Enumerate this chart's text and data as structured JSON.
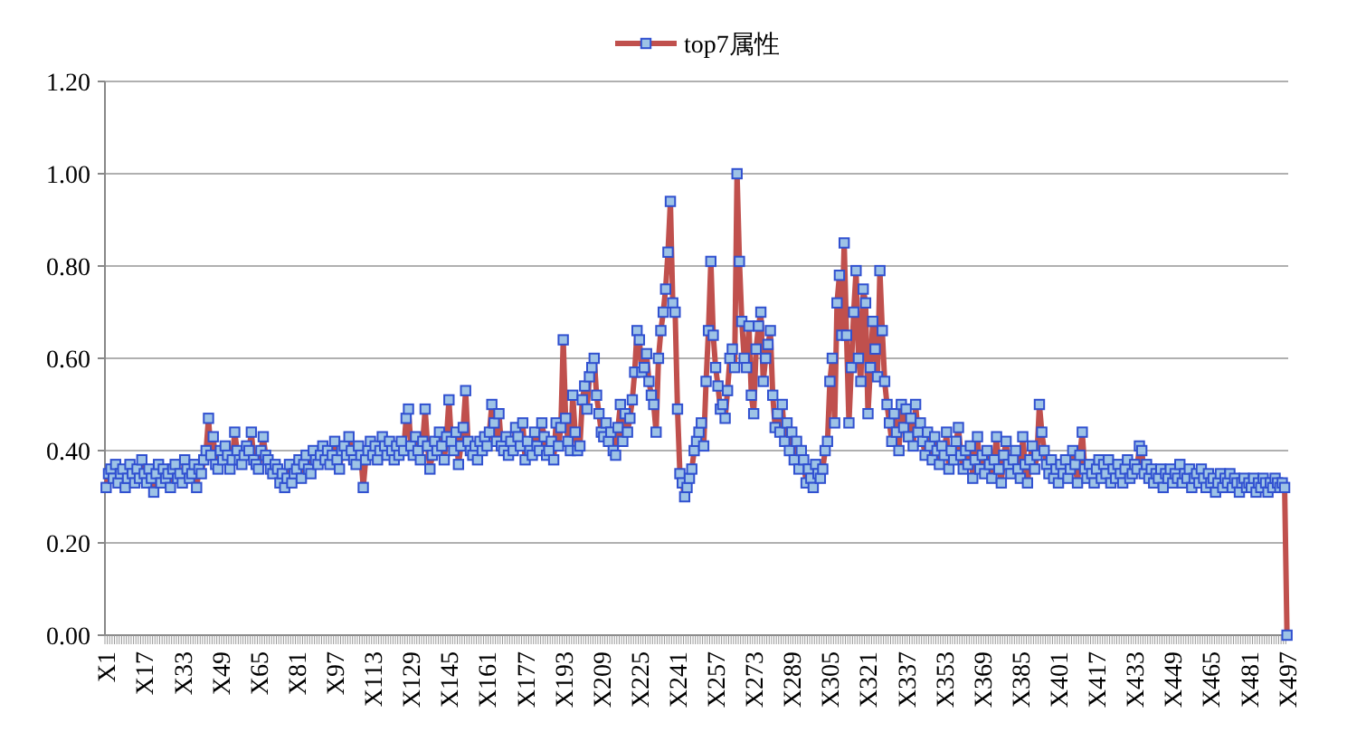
{
  "chart_data": {
    "type": "line",
    "legend": "top",
    "grid": "y",
    "marker": "square",
    "ylim": [
      0,
      1.2
    ],
    "yticks": [
      {
        "value": 0,
        "label": "0.00"
      },
      {
        "value": 0.2,
        "label": "0.20"
      },
      {
        "value": 0.4,
        "label": "0.40"
      },
      {
        "value": 0.6,
        "label": "0.60"
      },
      {
        "value": 0.8,
        "label": "0.80"
      },
      {
        "value": 1.0,
        "label": "1.00"
      },
      {
        "value": 1.2,
        "label": "1.20"
      }
    ],
    "categories": [
      "X1",
      null,
      null,
      null,
      null,
      null,
      null,
      null,
      null,
      null,
      null,
      null,
      null,
      null,
      null,
      null,
      "X17",
      null,
      null,
      null,
      null,
      null,
      null,
      null,
      null,
      null,
      null,
      null,
      null,
      null,
      null,
      null,
      "X33",
      null,
      null,
      null,
      null,
      null,
      null,
      null,
      null,
      null,
      null,
      null,
      null,
      null,
      null,
      null,
      "X49",
      null,
      null,
      null,
      null,
      null,
      null,
      null,
      null,
      null,
      null,
      null,
      null,
      null,
      null,
      null,
      "X65",
      null,
      null,
      null,
      null,
      null,
      null,
      null,
      null,
      null,
      null,
      null,
      null,
      null,
      null,
      null,
      "X81",
      null,
      null,
      null,
      null,
      null,
      null,
      null,
      null,
      null,
      null,
      null,
      null,
      null,
      null,
      null,
      "X97",
      null,
      null,
      null,
      null,
      null,
      null,
      null,
      null,
      null,
      null,
      null,
      null,
      null,
      null,
      null,
      "X113",
      null,
      null,
      null,
      null,
      null,
      null,
      null,
      null,
      null,
      null,
      null,
      null,
      null,
      null,
      null,
      "X129",
      null,
      null,
      null,
      null,
      null,
      null,
      null,
      null,
      null,
      null,
      null,
      null,
      null,
      null,
      null,
      "X145",
      null,
      null,
      null,
      null,
      null,
      null,
      null,
      null,
      null,
      null,
      null,
      null,
      null,
      null,
      null,
      "X161",
      null,
      null,
      null,
      null,
      null,
      null,
      null,
      null,
      null,
      null,
      null,
      null,
      null,
      null,
      null,
      "X177",
      null,
      null,
      null,
      null,
      null,
      null,
      null,
      null,
      null,
      null,
      null,
      null,
      null,
      null,
      null,
      "X193",
      null,
      null,
      null,
      null,
      null,
      null,
      null,
      null,
      null,
      null,
      null,
      null,
      null,
      null,
      null,
      "X209",
      null,
      null,
      null,
      null,
      null,
      null,
      null,
      null,
      null,
      null,
      null,
      null,
      null,
      null,
      null,
      "X225",
      null,
      null,
      null,
      null,
      null,
      null,
      null,
      null,
      null,
      null,
      null,
      null,
      null,
      null,
      null,
      "X241",
      null,
      null,
      null,
      null,
      null,
      null,
      null,
      null,
      null,
      null,
      null,
      null,
      null,
      null,
      null,
      "X257",
      null,
      null,
      null,
      null,
      null,
      null,
      null,
      null,
      null,
      null,
      null,
      null,
      null,
      null,
      null,
      "X273",
      null,
      null,
      null,
      null,
      null,
      null,
      null,
      null,
      null,
      null,
      null,
      null,
      null,
      null,
      null,
      "X289",
      null,
      null,
      null,
      null,
      null,
      null,
      null,
      null,
      null,
      null,
      null,
      null,
      null,
      null,
      null,
      "X305",
      null,
      null,
      null,
      null,
      null,
      null,
      null,
      null,
      null,
      null,
      null,
      null,
      null,
      null,
      null,
      "X321",
      null,
      null,
      null,
      null,
      null,
      null,
      null,
      null,
      null,
      null,
      null,
      null,
      null,
      null,
      null,
      "X337",
      null,
      null,
      null,
      null,
      null,
      null,
      null,
      null,
      null,
      null,
      null,
      null,
      null,
      null,
      null,
      "X353",
      null,
      null,
      null,
      null,
      null,
      null,
      null,
      null,
      null,
      null,
      null,
      null,
      null,
      null,
      null,
      "X369",
      null,
      null,
      null,
      null,
      null,
      null,
      null,
      null,
      null,
      null,
      null,
      null,
      null,
      null,
      null,
      "X385",
      null,
      null,
      null,
      null,
      null,
      null,
      null,
      null,
      null,
      null,
      null,
      null,
      null,
      null,
      null,
      "X401",
      null,
      null,
      null,
      null,
      null,
      null,
      null,
      null,
      null,
      null,
      null,
      null,
      null,
      null,
      null,
      "X417",
      null,
      null,
      null,
      null,
      null,
      null,
      null,
      null,
      null,
      null,
      null,
      null,
      null,
      null,
      null,
      "X433",
      null,
      null,
      null,
      null,
      null,
      null,
      null,
      null,
      null,
      null,
      null,
      null,
      null,
      null,
      null,
      "X449",
      null,
      null,
      null,
      null,
      null,
      null,
      null,
      null,
      null,
      null,
      null,
      null,
      null,
      null,
      null,
      "X465",
      null,
      null,
      null,
      null,
      null,
      null,
      null,
      null,
      null,
      null,
      null,
      null,
      null,
      null,
      null,
      "X481",
      null,
      null,
      null,
      null,
      null,
      null,
      null,
      null,
      null,
      null,
      null,
      null,
      null,
      null,
      null,
      "X497"
    ],
    "series": [
      {
        "name": "top7属性",
        "color": "#c0504d",
        "values": [
          0.32,
          0.35,
          0.36,
          0.34,
          0.37,
          0.33,
          0.35,
          0.36,
          0.32,
          0.34,
          0.37,
          0.35,
          0.33,
          0.36,
          0.34,
          0.38,
          0.35,
          0.33,
          0.36,
          0.34,
          0.31,
          0.35,
          0.37,
          0.33,
          0.36,
          0.34,
          0.35,
          0.32,
          0.36,
          0.37,
          0.34,
          0.35,
          0.33,
          0.38,
          0.36,
          0.34,
          0.35,
          0.37,
          0.32,
          0.36,
          0.35,
          0.38,
          0.4,
          0.47,
          0.39,
          0.43,
          0.37,
          0.36,
          0.4,
          0.38,
          0.41,
          0.39,
          0.36,
          0.38,
          0.44,
          0.4,
          0.38,
          0.37,
          0.39,
          0.41,
          0.4,
          0.44,
          0.38,
          0.37,
          0.36,
          0.4,
          0.43,
          0.39,
          0.38,
          0.36,
          0.35,
          0.37,
          0.36,
          0.33,
          0.35,
          0.32,
          0.34,
          0.37,
          0.33,
          0.35,
          0.36,
          0.38,
          0.34,
          0.37,
          0.39,
          0.36,
          0.35,
          0.4,
          0.38,
          0.37,
          0.39,
          0.41,
          0.38,
          0.4,
          0.37,
          0.39,
          0.42,
          0.38,
          0.36,
          0.4,
          0.41,
          0.39,
          0.43,
          0.4,
          0.38,
          0.37,
          0.41,
          0.39,
          0.32,
          0.38,
          0.4,
          0.42,
          0.39,
          0.41,
          0.38,
          0.4,
          0.43,
          0.41,
          0.39,
          0.42,
          0.4,
          0.38,
          0.41,
          0.39,
          0.42,
          0.4,
          0.47,
          0.49,
          0.41,
          0.39,
          0.43,
          0.4,
          0.38,
          0.42,
          0.49,
          0.41,
          0.36,
          0.39,
          0.42,
          0.4,
          0.44,
          0.41,
          0.38,
          0.43,
          0.51,
          0.42,
          0.4,
          0.44,
          0.37,
          0.41,
          0.45,
          0.53,
          0.42,
          0.4,
          0.39,
          0.41,
          0.38,
          0.42,
          0.4,
          0.43,
          0.41,
          0.44,
          0.5,
          0.46,
          0.42,
          0.48,
          0.41,
          0.4,
          0.43,
          0.39,
          0.42,
          0.4,
          0.45,
          0.43,
          0.41,
          0.46,
          0.38,
          0.42,
          0.4,
          0.39,
          0.44,
          0.41,
          0.4,
          0.46,
          0.43,
          0.39,
          0.4,
          0.42,
          0.38,
          0.46,
          0.41,
          0.45,
          0.64,
          0.47,
          0.42,
          0.4,
          0.52,
          0.44,
          0.4,
          0.41,
          0.51,
          0.54,
          0.49,
          0.56,
          0.58,
          0.6,
          0.52,
          0.48,
          0.44,
          0.43,
          0.46,
          0.42,
          0.44,
          0.4,
          0.39,
          0.45,
          0.5,
          0.42,
          0.48,
          0.44,
          0.47,
          0.51,
          0.57,
          0.66,
          0.64,
          0.57,
          0.58,
          0.61,
          0.55,
          0.52,
          0.5,
          0.44,
          0.6,
          0.66,
          0.7,
          0.75,
          0.83,
          0.94,
          0.72,
          0.7,
          0.49,
          0.35,
          0.33,
          0.3,
          0.32,
          0.34,
          0.36,
          0.4,
          0.42,
          0.44,
          0.46,
          0.41,
          0.55,
          0.66,
          0.81,
          0.65,
          0.58,
          0.54,
          0.49,
          0.5,
          0.47,
          0.53,
          0.6,
          0.62,
          0.58,
          1.0,
          0.81,
          0.68,
          0.6,
          0.58,
          0.67,
          0.52,
          0.48,
          0.62,
          0.67,
          0.7,
          0.55,
          0.6,
          0.63,
          0.66,
          0.52,
          0.45,
          0.48,
          0.44,
          0.5,
          0.42,
          0.46,
          0.4,
          0.44,
          0.38,
          0.42,
          0.36,
          0.4,
          0.38,
          0.33,
          0.36,
          0.34,
          0.32,
          0.37,
          0.35,
          0.34,
          0.36,
          0.4,
          0.42,
          0.55,
          0.6,
          0.46,
          0.72,
          0.78,
          0.65,
          0.85,
          0.65,
          0.46,
          0.58,
          0.7,
          0.79,
          0.6,
          0.55,
          0.75,
          0.72,
          0.48,
          0.58,
          0.68,
          0.62,
          0.56,
          0.79,
          0.66,
          0.55,
          0.5,
          0.46,
          0.42,
          0.48,
          0.44,
          0.4,
          0.5,
          0.45,
          0.49,
          0.43,
          0.47,
          0.41,
          0.5,
          0.44,
          0.46,
          0.42,
          0.39,
          0.44,
          0.41,
          0.38,
          0.43,
          0.4,
          0.37,
          0.41,
          0.39,
          0.44,
          0.36,
          0.4,
          0.38,
          0.42,
          0.45,
          0.39,
          0.36,
          0.4,
          0.37,
          0.41,
          0.34,
          0.38,
          0.43,
          0.36,
          0.39,
          0.35,
          0.4,
          0.37,
          0.34,
          0.38,
          0.43,
          0.36,
          0.33,
          0.39,
          0.42,
          0.37,
          0.35,
          0.38,
          0.4,
          0.36,
          0.34,
          0.43,
          0.37,
          0.33,
          0.38,
          0.41,
          0.36,
          0.39,
          0.5,
          0.44,
          0.4,
          0.37,
          0.35,
          0.38,
          0.34,
          0.36,
          0.33,
          0.37,
          0.35,
          0.38,
          0.34,
          0.36,
          0.4,
          0.37,
          0.33,
          0.39,
          0.44,
          0.36,
          0.34,
          0.37,
          0.35,
          0.33,
          0.36,
          0.38,
          0.34,
          0.37,
          0.35,
          0.38,
          0.33,
          0.36,
          0.34,
          0.37,
          0.35,
          0.33,
          0.36,
          0.38,
          0.34,
          0.35,
          0.37,
          0.36,
          0.41,
          0.4,
          0.35,
          0.37,
          0.34,
          0.36,
          0.33,
          0.35,
          0.34,
          0.36,
          0.32,
          0.35,
          0.34,
          0.36,
          0.33,
          0.35,
          0.34,
          0.37,
          0.33,
          0.35,
          0.34,
          0.36,
          0.32,
          0.34,
          0.35,
          0.33,
          0.36,
          0.34,
          0.32,
          0.35,
          0.33,
          0.34,
          0.31,
          0.33,
          0.35,
          0.32,
          0.34,
          0.33,
          0.35,
          0.32,
          0.34,
          0.33,
          0.31,
          0.33,
          0.34,
          0.32,
          0.33,
          0.32,
          0.34,
          0.31,
          0.33,
          0.32,
          0.34,
          0.33,
          0.31,
          0.33,
          0.32,
          0.34,
          0.33,
          0.32,
          0.33,
          0.32,
          0.0
        ]
      }
    ]
  }
}
